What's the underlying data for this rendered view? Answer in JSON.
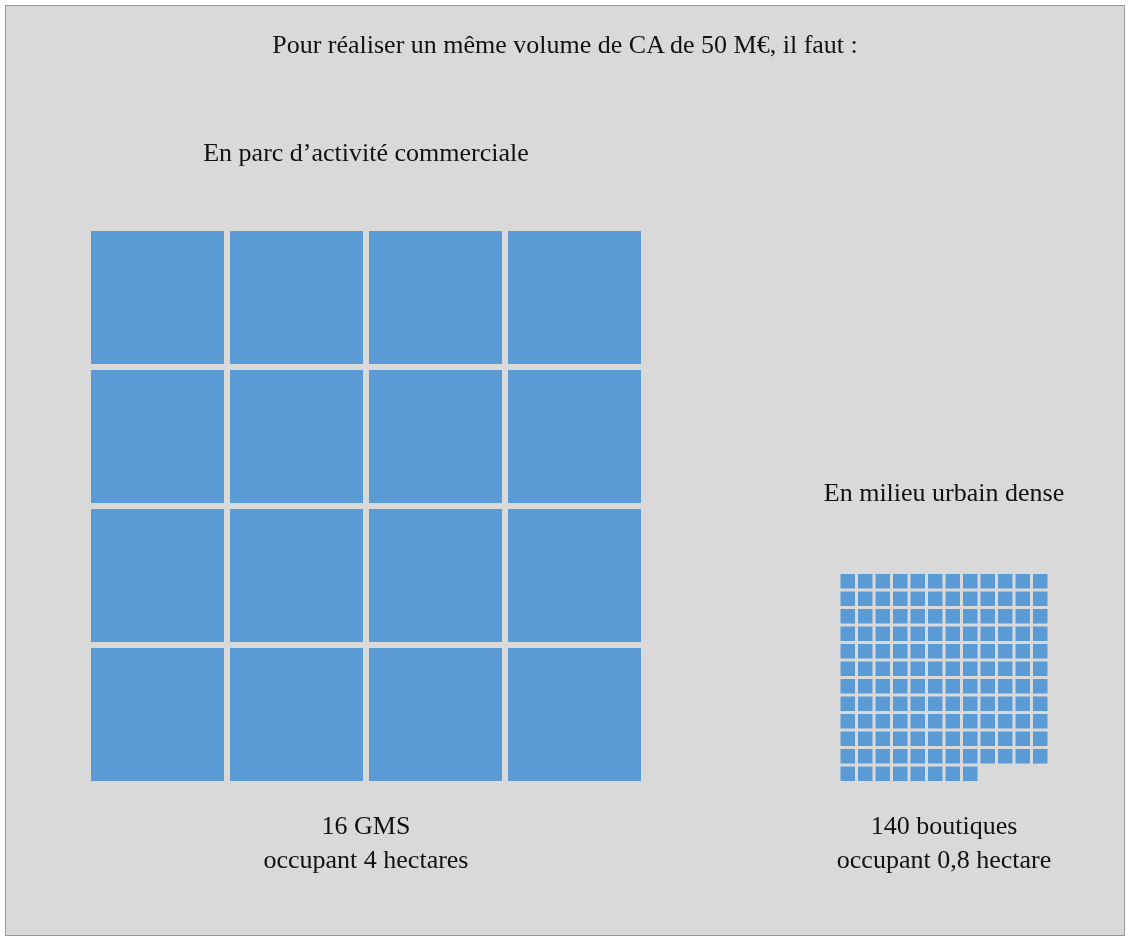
{
  "chart_data": {
    "type": "other",
    "title": "Pour réaliser un même volume de CA de 50 M€, il faut :",
    "categories": [
      "En parc d’activité commerciale",
      "En milieu urbain dense"
    ],
    "values": [
      16,
      140
    ],
    "color": "#5b9bd5",
    "value_labels": [
      "16 GMS\noccupant 4 hectares",
      "140 boutiques\noccupant 0,8 hectare"
    ]
  }
}
